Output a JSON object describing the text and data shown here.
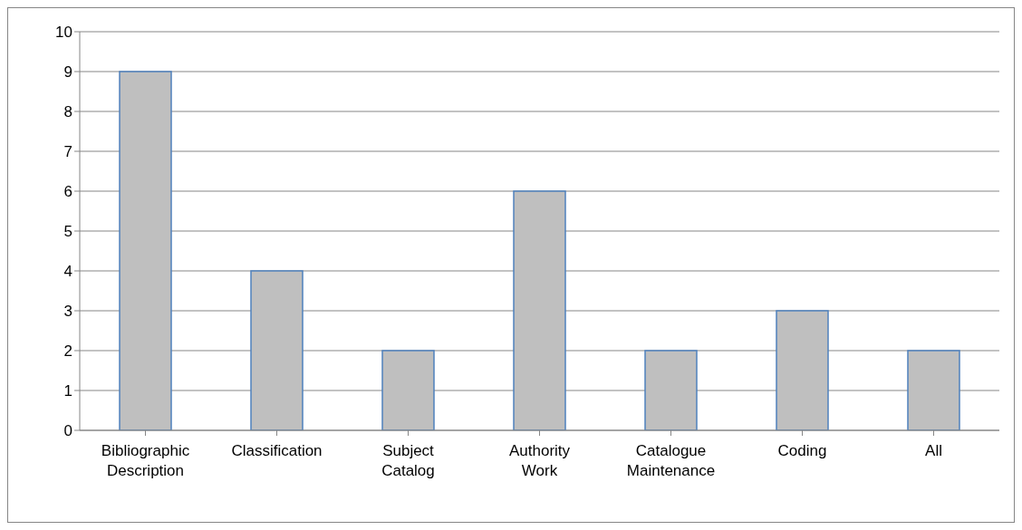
{
  "chart_data": {
    "type": "bar",
    "categories": [
      "Bibliographic Description",
      "Classification",
      "Subject Catalog",
      "Authority Work",
      "Catalogue Maintenance",
      "Coding",
      "All"
    ],
    "values": [
      9,
      4,
      2,
      6,
      2,
      3,
      2
    ],
    "color": "#bfbfbf",
    "ylim": [
      0,
      10
    ],
    "yticks": [
      0,
      1,
      2,
      3,
      4,
      5,
      6,
      7,
      8,
      9,
      10
    ],
    "grid": "y",
    "legend": false
  }
}
